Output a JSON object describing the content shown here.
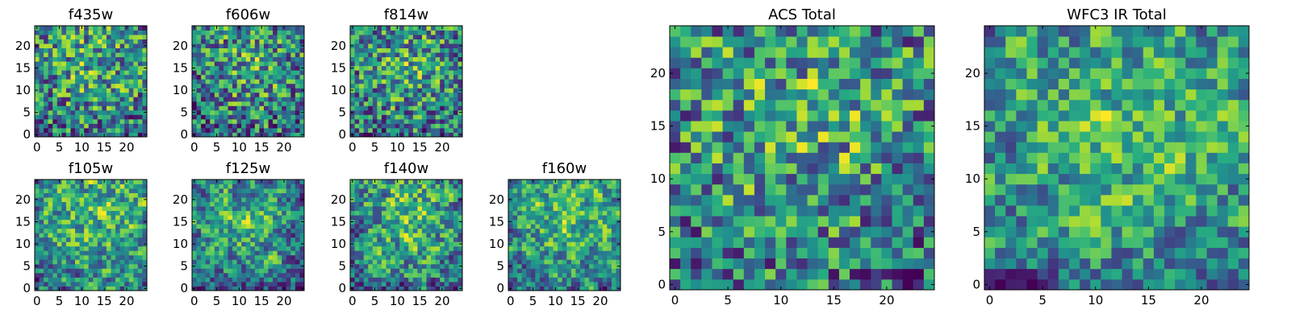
{
  "chart_data": {
    "type": "heatmap",
    "colormap": "viridis",
    "colors": {
      "viridis_low": "#440154",
      "viridis_mid": "#21908d",
      "viridis_high": "#fde725",
      "frame": "#000000",
      "background": "#ffffff"
    },
    "grid_size": 25,
    "panels": [
      {
        "id": "f435w",
        "title": "f435w",
        "xticks": [
          "0",
          "5",
          "10",
          "15",
          "20"
        ],
        "yticks": [
          "0",
          "5",
          "10",
          "15",
          "20"
        ],
        "xlim": [
          -0.5,
          24.5
        ],
        "ylim": [
          -0.5,
          24.5
        ],
        "seed": 11,
        "smooth": 0,
        "bias": 0.55
      },
      {
        "id": "f606w",
        "title": "f606w",
        "xticks": [
          "0",
          "5",
          "10",
          "15",
          "20"
        ],
        "yticks": [
          "0",
          "5",
          "10",
          "15",
          "20"
        ],
        "xlim": [
          -0.5,
          24.5
        ],
        "ylim": [
          -0.5,
          24.5
        ],
        "seed": 23,
        "smooth": 0,
        "bias": 0.58
      },
      {
        "id": "f814w",
        "title": "f814w",
        "xticks": [
          "0",
          "5",
          "10",
          "15",
          "20"
        ],
        "yticks": [
          "0",
          "5",
          "10",
          "15",
          "20"
        ],
        "xlim": [
          -0.5,
          24.5
        ],
        "ylim": [
          -0.5,
          24.5
        ],
        "seed": 37,
        "smooth": 0,
        "bias": 0.56
      },
      {
        "id": "f105w",
        "title": "f105w",
        "xticks": [
          "0",
          "5",
          "10",
          "15",
          "20"
        ],
        "yticks": [
          "0",
          "5",
          "10",
          "15",
          "20"
        ],
        "xlim": [
          -0.5,
          24.5
        ],
        "ylim": [
          -0.5,
          24.5
        ],
        "seed": 41,
        "smooth": 1,
        "bias": 0.55
      },
      {
        "id": "f125w",
        "title": "f125w",
        "xticks": [
          "0",
          "5",
          "10",
          "15",
          "20"
        ],
        "yticks": [
          "0",
          "5",
          "10",
          "15",
          "20"
        ],
        "xlim": [
          -0.5,
          24.5
        ],
        "ylim": [
          -0.5,
          24.5
        ],
        "seed": 53,
        "smooth": 1,
        "bias": 0.6
      },
      {
        "id": "f140w",
        "title": "f140w",
        "xticks": [
          "0",
          "5",
          "10",
          "15",
          "20"
        ],
        "yticks": [
          "0",
          "5",
          "10",
          "15",
          "20"
        ],
        "xlim": [
          -0.5,
          24.5
        ],
        "ylim": [
          -0.5,
          24.5
        ],
        "seed": 67,
        "smooth": 1,
        "bias": 0.57
      },
      {
        "id": "f160w",
        "title": "f160w",
        "xticks": [
          "0",
          "5",
          "10",
          "15",
          "20"
        ],
        "yticks": [
          "0",
          "5",
          "10",
          "15",
          "20"
        ],
        "xlim": [
          -0.5,
          24.5
        ],
        "ylim": [
          -0.5,
          24.5
        ],
        "seed": 79,
        "smooth": 1,
        "bias": 0.58
      },
      {
        "id": "acs",
        "title": "ACS Total",
        "xticks": [
          "0",
          "5",
          "10",
          "15",
          "20"
        ],
        "yticks": [
          "0",
          "5",
          "10",
          "15",
          "20"
        ],
        "xlim": [
          -0.5,
          24.5
        ],
        "ylim": [
          -0.5,
          24.5
        ],
        "seed": 83,
        "smooth": 0,
        "bias": 0.62
      },
      {
        "id": "wfc3",
        "title": "WFC3 IR Total",
        "xticks": [
          "0",
          "5",
          "10",
          "15",
          "20"
        ],
        "yticks": [
          "0",
          "5",
          "10",
          "15",
          "20"
        ],
        "xlim": [
          -0.5,
          24.5
        ],
        "ylim": [
          -0.5,
          24.5
        ],
        "seed": 97,
        "smooth": 1,
        "bias": 0.56
      }
    ]
  }
}
